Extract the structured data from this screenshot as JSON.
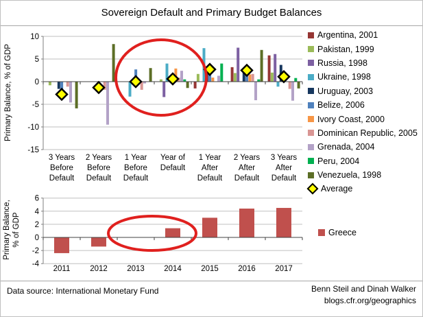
{
  "title": "Sovereign Default and Primary Budget Balances",
  "footer": {
    "source": "Data source: International Monetary Fund",
    "credit_line1": "Benn Steil and Dinah Walker",
    "credit_line2": "blogs.cfr.org/geographics"
  },
  "palette": {
    "gridline": "#bfbfbf",
    "y_axis": "#7f7f7f",
    "category_axis": "#404040",
    "annotation_red": "#e0201e",
    "average_fill": "#ffff00",
    "average_border": "#000000"
  },
  "chart_data": [
    {
      "type": "bar",
      "name": "sovereign-defaulters-primary-balance",
      "ylabel": "Primary Balance, % of GDP",
      "ylim": [
        -15,
        10
      ],
      "yticks": [
        10,
        5,
        0,
        -5,
        -10,
        -15
      ],
      "grid": true,
      "legend_position": "right",
      "categories": [
        "3 Years Before Default",
        "2 Years Before Default",
        "1 Year Before Default",
        "Year of Default",
        "1 Year After Default",
        "2 Years After Default",
        "3 Years After Default"
      ],
      "category_lines": [
        [
          "3 Years",
          "Before",
          "Default"
        ],
        [
          "2 Years",
          "Before",
          "Default"
        ],
        [
          "1 Year",
          "Before",
          "Default"
        ],
        [
          "Year of",
          "Default"
        ],
        [
          "1 Year",
          "After",
          "Default"
        ],
        [
          "2 Years",
          "After",
          "Default"
        ],
        [
          "3 Years",
          "After",
          "Default"
        ]
      ],
      "series": [
        {
          "name": "Argentina, 2001",
          "color": "#963634",
          "values": [
            0,
            0,
            0,
            0,
            -1.5,
            3.2,
            5.8
          ]
        },
        {
          "name": "Pakistan, 1999",
          "color": "#9bbb59",
          "values": [
            -0.8,
            0,
            0,
            0.5,
            1.7,
            1.9,
            2.0
          ]
        },
        {
          "name": "Russia, 1998",
          "color": "#7d60a2",
          "values": [
            0,
            0,
            0,
            -3.4,
            0,
            7.5,
            6.1
          ]
        },
        {
          "name": "Ukraine, 1998",
          "color": "#4bacc6",
          "values": [
            0,
            0,
            -3.3,
            4.0,
            7.4,
            0,
            -1.1
          ]
        },
        {
          "name": "Uruguay, 2003",
          "color": "#17375e",
          "values": [
            -1.6,
            0,
            0,
            0,
            2.3,
            2.3,
            3.7
          ]
        },
        {
          "name": "Belize, 2006",
          "color": "#4f81bd",
          "values": [
            -2.4,
            0,
            2.7,
            0,
            1.7,
            2.1,
            0
          ]
        },
        {
          "name": "Ivory Coast, 2000",
          "color": "#f79646",
          "values": [
            0,
            0,
            0,
            2.9,
            0.9,
            1.6,
            0
          ]
        },
        {
          "name": "Dominican Republic, 2005",
          "color": "#d99694",
          "values": [
            -1.1,
            -1.8,
            -1.8,
            0.9,
            0,
            1.7,
            -1.6
          ]
        },
        {
          "name": "Grenada, 2004",
          "color": "#b3a2c7",
          "values": [
            -4.6,
            -9.5,
            -0.4,
            2.4,
            1.3,
            -4.1,
            -4.2
          ]
        },
        {
          "name": "Peru, 2004",
          "color": "#00b050",
          "values": [
            0,
            0,
            0,
            0.5,
            4.0,
            0.5,
            0.8
          ]
        },
        {
          "name": "Venezuela, 1998",
          "color": "#5c6e26",
          "values": [
            -5.9,
            8.3,
            3.0,
            -1.4,
            0,
            7.0,
            -1.5
          ]
        }
      ],
      "average_series": {
        "name": "Average",
        "marker": "diamond",
        "fill": "#ffff00",
        "values": [
          -2.8,
          -1.3,
          0.0,
          0.6,
          2.7,
          2.5,
          1.1
        ]
      },
      "annotation": {
        "shape": "ellipse",
        "color": "#e0201e",
        "highlights": "1 Year Before Default and Year of Default"
      }
    },
    {
      "type": "bar",
      "name": "greece-primary-balance",
      "ylabel": "Primary Balance, % of GDP",
      "ylabel_lines": [
        "Primary Balance,",
        "% of GDP"
      ],
      "ylim": [
        -4,
        6
      ],
      "yticks": [
        6,
        4,
        2,
        0,
        -2,
        -4
      ],
      "grid": true,
      "legend_position": "right",
      "categories": [
        "2011",
        "2012",
        "2013",
        "2014",
        "2015",
        "2016",
        "2017"
      ],
      "series": [
        {
          "name": "Greece",
          "color": "#c0504d",
          "values": [
            -2.4,
            -1.4,
            0,
            1.4,
            3.0,
            4.4,
            4.5
          ]
        }
      ],
      "annotation": {
        "shape": "ellipse",
        "color": "#e0201e",
        "highlights": "2013 and 2014"
      }
    }
  ]
}
